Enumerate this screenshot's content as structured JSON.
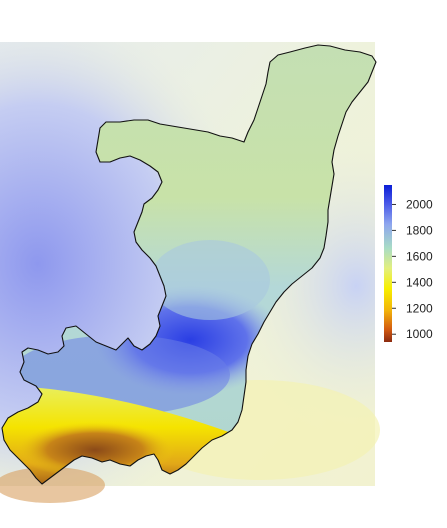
{
  "legend": {
    "ticks": [
      {
        "value": 2000,
        "label": "2000"
      },
      {
        "value": 1800,
        "label": "1800"
      },
      {
        "value": 1600,
        "label": "1600"
      },
      {
        "value": 1400,
        "label": "1400"
      },
      {
        "value": 1200,
        "label": "1200"
      },
      {
        "value": 1000,
        "label": "1000"
      }
    ],
    "range": [
      940,
      2150
    ],
    "colors": [
      "#8b2a10",
      "#d35a10",
      "#f2b30a",
      "#f7ef00",
      "#e2ef7e",
      "#a8dcc6",
      "#8ea6ee",
      "#4a5ae8",
      "#0b1ed6"
    ],
    "color_stops": [
      0.0,
      0.08,
      0.2,
      0.34,
      0.47,
      0.6,
      0.75,
      0.88,
      1.0
    ]
  },
  "colors": {
    "outline": "#111111",
    "surround_light": "#eef2dc",
    "surround_blue": "#b8c3f2",
    "surround_yellow": "#f3f3b8",
    "north_body": "#c8e0b0",
    "northeast_body": "#b4dcc8",
    "blue_belt": "#3f52e6",
    "yellow_south": "#f2de10",
    "brown_south": "#a86018"
  }
}
